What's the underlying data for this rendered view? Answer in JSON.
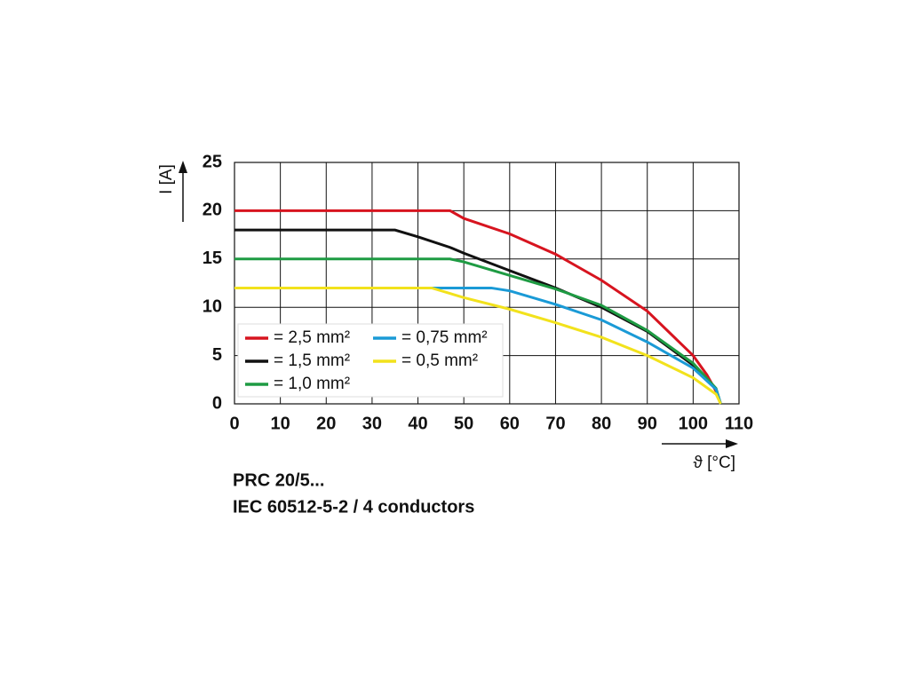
{
  "chart_data": {
    "type": "line",
    "x_label": "ϑ [°C]",
    "y_label": "I [A]",
    "xlim": [
      0,
      110
    ],
    "xticks": [
      0,
      10,
      20,
      30,
      40,
      50,
      60,
      70,
      80,
      90,
      100,
      110
    ],
    "ylim": [
      0,
      25
    ],
    "yticks": [
      0,
      5,
      10,
      15,
      20,
      25
    ],
    "grid": true,
    "legend": "lower left",
    "series": [
      {
        "name": "= 2,5 mm²",
        "color": "#d7141f",
        "x": [
          0,
          47,
          50,
          60,
          70,
          80,
          90,
          100,
          103,
          105,
          106
        ],
        "values": [
          20,
          20,
          19.2,
          17.6,
          15.5,
          12.8,
          9.6,
          5,
          3,
          1.3,
          0
        ]
      },
      {
        "name": "= 1,5 mm²",
        "color": "#111111",
        "x": [
          0,
          35,
          40,
          47,
          50,
          60,
          70,
          80,
          90,
          100,
          105,
          106
        ],
        "values": [
          18,
          18,
          17.3,
          16.2,
          15.6,
          13.8,
          12,
          10,
          7.5,
          4,
          1.5,
          0
        ]
      },
      {
        "name": "= 1,0 mm²",
        "color": "#1e9b43",
        "x": [
          0,
          47,
          50,
          60,
          70,
          80,
          90,
          100,
          105,
          106
        ],
        "values": [
          15,
          15,
          14.7,
          13.3,
          11.9,
          10.2,
          7.6,
          4.2,
          1.6,
          0
        ]
      },
      {
        "name": "= 0,75 mm²",
        "color": "#1a9ad6",
        "x": [
          0,
          56,
          60,
          70,
          80,
          90,
          100,
          105,
          106
        ],
        "values": [
          12,
          12,
          11.7,
          10.3,
          8.7,
          6.4,
          3.7,
          1.5,
          0
        ]
      },
      {
        "name": "= 0,5 mm²",
        "color": "#f2e21c",
        "x": [
          0,
          43,
          50,
          60,
          70,
          80,
          90,
          100,
          105,
          106
        ],
        "values": [
          12,
          12,
          11,
          9.8,
          8.4,
          6.9,
          5,
          2.7,
          1,
          0
        ]
      }
    ]
  },
  "notes": [
    "PRC 20/5...",
    "IEC 60512-5-2 / 4 conductors"
  ]
}
